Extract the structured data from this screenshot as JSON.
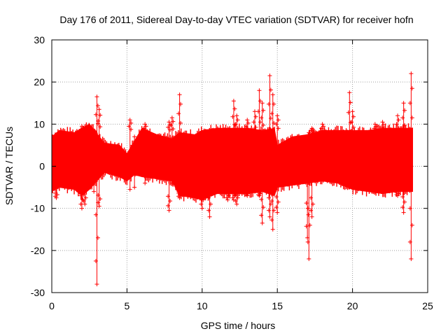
{
  "chart_data": {
    "type": "scatter",
    "title": "Day 176 of 2011, Sidereal Day-to-day VTEC variation (SDTVAR) for receiver hofn",
    "xlabel": "GPS time / hours",
    "ylabel": "SDTVAR / TECUs",
    "xlim": [
      0,
      25
    ],
    "ylim": [
      -30,
      30
    ],
    "x_ticks": [
      0,
      5,
      10,
      15,
      20,
      25
    ],
    "y_ticks": [
      -30,
      -20,
      -10,
      0,
      10,
      20,
      30
    ],
    "grid": true,
    "marker": "+",
    "series_color": "#ff0000",
    "envelope": {
      "x": [
        0,
        0.5,
        1.5,
        2.0,
        2.5,
        3.5,
        4.5,
        5.0,
        5.5,
        6.0,
        7.0,
        8.0,
        8.5,
        9.5,
        10.0,
        11.0,
        12.0,
        13.0,
        14.0,
        14.8,
        15.0,
        16.0,
        17.0,
        18.0,
        19.0,
        20.0,
        21.0,
        22.0,
        23.0,
        24.0
      ],
      "upper": [
        7,
        8.5,
        8,
        9,
        10,
        5.5,
        5,
        3,
        6,
        9,
        7.5,
        6.5,
        8,
        7.5,
        8.5,
        9,
        9,
        9,
        8.5,
        9,
        5,
        7,
        7.5,
        8.5,
        8.5,
        8.5,
        8.5,
        9,
        9,
        9
      ],
      "lower": [
        -6,
        -5,
        -5.5,
        -7,
        -5.5,
        -1.5,
        -2.5,
        -3.5,
        -2,
        -2.5,
        -3,
        -3.5,
        -7,
        -7.5,
        -8,
        -6.5,
        -6.5,
        -6.5,
        -6,
        -7,
        -5,
        -4.5,
        -4,
        -3.5,
        -4,
        -5.5,
        -6,
        -6.5,
        -6,
        -6
      ]
    },
    "spikes": [
      {
        "x": 0.3,
        "low": -7.5,
        "high": 7.5
      },
      {
        "x": 2.0,
        "low": -10,
        "high": 9.5
      },
      {
        "x": 2.2,
        "low": -9,
        "high": 5
      },
      {
        "x": 2.8,
        "low": -6,
        "high": 8.5
      },
      {
        "x": 3.0,
        "low": -28,
        "high": 16.5
      },
      {
        "x": 3.15,
        "low": -9.5,
        "high": 13.5
      },
      {
        "x": 5.2,
        "low": -5.5,
        "high": 11
      },
      {
        "x": 5.5,
        "low": -5,
        "high": 7
      },
      {
        "x": 6.2,
        "low": -4,
        "high": 10
      },
      {
        "x": 7.8,
        "low": -10.5,
        "high": 10.5
      },
      {
        "x": 8.0,
        "low": -4,
        "high": 11.5
      },
      {
        "x": 8.5,
        "low": -7.5,
        "high": 17
      },
      {
        "x": 10.0,
        "low": -10,
        "high": 7
      },
      {
        "x": 10.5,
        "low": -12,
        "high": 8
      },
      {
        "x": 11.7,
        "low": -8,
        "high": 9
      },
      {
        "x": 12.1,
        "low": -8,
        "high": 15.5
      },
      {
        "x": 12.3,
        "low": -9,
        "high": 12
      },
      {
        "x": 13.0,
        "low": -7,
        "high": 11
      },
      {
        "x": 13.5,
        "low": -6,
        "high": 13
      },
      {
        "x": 13.8,
        "low": -7,
        "high": 18
      },
      {
        "x": 14.0,
        "low": -13.5,
        "high": 15
      },
      {
        "x": 14.5,
        "low": -12,
        "high": 21.5
      },
      {
        "x": 14.7,
        "low": -15,
        "high": 17
      },
      {
        "x": 15.0,
        "low": -11,
        "high": 12
      },
      {
        "x": 17.0,
        "low": -17,
        "high": 5
      },
      {
        "x": 17.1,
        "low": -22,
        "high": 8
      },
      {
        "x": 17.3,
        "low": -12,
        "high": 9
      },
      {
        "x": 18.0,
        "low": -3,
        "high": 10
      },
      {
        "x": 19.8,
        "low": -5,
        "high": 17.5
      },
      {
        "x": 20.0,
        "low": -4.5,
        "high": 13
      },
      {
        "x": 21.5,
        "low": -6,
        "high": 10
      },
      {
        "x": 22.0,
        "low": -6,
        "high": 10.5
      },
      {
        "x": 23.0,
        "low": -7,
        "high": 12
      },
      {
        "x": 23.4,
        "low": -11,
        "high": 15
      },
      {
        "x": 23.9,
        "low": -22,
        "high": 22
      }
    ]
  }
}
